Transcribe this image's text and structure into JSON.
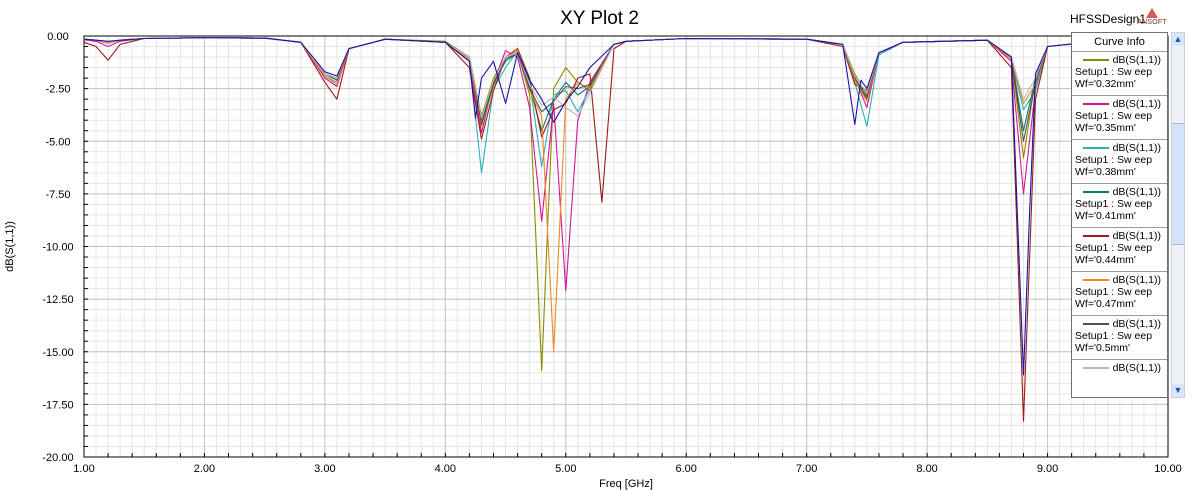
{
  "plot": {
    "title": "XY Plot 2",
    "design_name": "HFSSDesign1",
    "logo_text": "ANSOFT"
  },
  "legend": {
    "header": "Curve Info",
    "scroll_up_icon": "chevron-up-icon",
    "scroll_down_icon": "chevron-down-icon",
    "entries": [
      {
        "line1": "dB(S(1,1))",
        "line2": "Setup1 : Sw eep",
        "line3": "Wf='0.32mm'",
        "color": "#8b8b00"
      },
      {
        "line1": "dB(S(1,1))",
        "line2": "Setup1 : Sw eep",
        "line3": "Wf='0.35mm'",
        "color": "#d4149a"
      },
      {
        "line1": "dB(S(1,1))",
        "line2": "Setup1 : Sw eep",
        "line3": "Wf='0.38mm'",
        "color": "#2ab0b8"
      },
      {
        "line1": "dB(S(1,1))",
        "line2": "Setup1 : Sw eep",
        "line3": "Wf='0.41mm'",
        "color": "#0a7a6a"
      },
      {
        "line1": "dB(S(1,1))",
        "line2": "Setup1 : Sw eep",
        "line3": "Wf='0.44mm'",
        "color": "#a01818"
      },
      {
        "line1": "dB(S(1,1))",
        "line2": "Setup1 : Sw eep",
        "line3": "Wf='0.47mm'",
        "color": "#f0861a"
      },
      {
        "line1": "dB(S(1,1))",
        "line2": "Setup1 : Sw eep",
        "line3": "Wf='0.5mm'",
        "color": "#505050"
      },
      {
        "line1": "dB(S(1,1))",
        "line2": "",
        "line3": "",
        "color": "#b8b8b8"
      }
    ]
  },
  "chart_data": {
    "type": "line",
    "title": "XY Plot 2",
    "xlabel": "Freq [GHz]",
    "ylabel": "dB(S(1,1))",
    "xlim": [
      1.0,
      10.0
    ],
    "ylim": [
      -20.0,
      0.0
    ],
    "xticks": [
      "1.00",
      "2.00",
      "3.00",
      "4.00",
      "5.00",
      "6.00",
      "7.00",
      "8.00",
      "9.00",
      "10.00"
    ],
    "yticks": [
      "0.00",
      "-2.50",
      "-5.00",
      "-7.50",
      "-10.00",
      "-12.50",
      "-15.00",
      "-17.50",
      "-20.00"
    ],
    "grid": true,
    "legend_position": "right",
    "series": [
      {
        "name": "Wf='0.32mm'",
        "color": "#8b8b00",
        "x": [
          1.0,
          1.1,
          1.2,
          1.3,
          1.5,
          2.0,
          2.5,
          2.8,
          3.0,
          3.1,
          3.2,
          3.5,
          4.0,
          4.2,
          4.3,
          4.4,
          4.5,
          4.6,
          4.7,
          4.8,
          4.85,
          4.9,
          5.0,
          5.1,
          5.2,
          5.4,
          5.5,
          6.0,
          7.0,
          7.3,
          7.4,
          7.5,
          7.6,
          7.8,
          8.5,
          8.7,
          8.8,
          8.9,
          9.0,
          9.5,
          10.0
        ],
        "y": [
          -0.15,
          -0.2,
          -0.3,
          -0.2,
          -0.12,
          -0.08,
          -0.1,
          -0.3,
          -1.8,
          -2.1,
          -0.6,
          -0.15,
          -0.25,
          -1.0,
          -3.8,
          -2.0,
          -1.0,
          -0.8,
          -2.8,
          -15.9,
          -9.0,
          -2.5,
          -1.5,
          -2.2,
          -2.6,
          -0.4,
          -0.25,
          -0.12,
          -0.15,
          -0.4,
          -1.8,
          -2.8,
          -0.8,
          -0.3,
          -0.2,
          -1.0,
          -5.8,
          -2.0,
          -0.5,
          -0.2,
          -0.15
        ]
      },
      {
        "name": "Wf='0.35mm'",
        "color": "#d4149a",
        "x": [
          1.0,
          1.1,
          1.2,
          1.3,
          1.5,
          2.0,
          2.5,
          2.8,
          3.0,
          3.1,
          3.2,
          3.5,
          4.0,
          4.2,
          4.3,
          4.4,
          4.5,
          4.6,
          4.7,
          4.8,
          4.9,
          5.0,
          5.1,
          5.2,
          5.4,
          5.5,
          6.0,
          7.0,
          7.3,
          7.4,
          7.5,
          7.6,
          7.8,
          8.5,
          8.7,
          8.8,
          8.9,
          9.0,
          9.5,
          10.0
        ],
        "y": [
          -0.18,
          -0.25,
          -0.5,
          -0.25,
          -0.12,
          -0.08,
          -0.1,
          -0.3,
          -2.0,
          -2.4,
          -0.6,
          -0.15,
          -0.3,
          -1.2,
          -4.6,
          -2.2,
          -0.7,
          -1.0,
          -3.4,
          -8.8,
          -3.2,
          -12.1,
          -4.0,
          -2.2,
          -0.4,
          -0.25,
          -0.12,
          -0.15,
          -0.4,
          -2.0,
          -3.4,
          -0.8,
          -0.3,
          -0.2,
          -1.2,
          -7.5,
          -2.5,
          -0.5,
          -0.2,
          -0.15
        ]
      },
      {
        "name": "Wf='0.38mm'",
        "color": "#2ab0b8",
        "x": [
          1.0,
          1.1,
          1.2,
          1.3,
          1.5,
          2.0,
          2.5,
          2.8,
          3.0,
          3.1,
          3.2,
          3.5,
          4.0,
          4.2,
          4.3,
          4.4,
          4.5,
          4.6,
          4.7,
          4.8,
          4.9,
          5.0,
          5.1,
          5.2,
          5.4,
          5.5,
          6.0,
          7.0,
          7.3,
          7.4,
          7.5,
          7.6,
          7.8,
          8.5,
          8.7,
          8.8,
          8.9,
          9.0,
          9.5,
          10.0
        ],
        "y": [
          -0.15,
          -0.2,
          -0.35,
          -0.2,
          -0.12,
          -0.08,
          -0.1,
          -0.3,
          -1.9,
          -2.2,
          -0.6,
          -0.15,
          -0.3,
          -1.1,
          -6.5,
          -2.5,
          -1.5,
          -0.7,
          -2.2,
          -6.2,
          -2.8,
          -2.6,
          -3.6,
          -2.5,
          -0.4,
          -0.25,
          -0.12,
          -0.15,
          -0.4,
          -2.2,
          -4.3,
          -0.9,
          -0.3,
          -0.2,
          -1.1,
          -3.5,
          -2.6,
          -0.5,
          -0.2,
          -0.15
        ]
      },
      {
        "name": "Wf='0.41mm'",
        "color": "#0a7a6a",
        "x": [
          1.0,
          1.1,
          1.2,
          1.3,
          1.5,
          2.0,
          2.5,
          2.8,
          3.0,
          3.1,
          3.2,
          3.5,
          4.0,
          4.2,
          4.3,
          4.4,
          4.5,
          4.6,
          4.7,
          4.8,
          4.9,
          5.0,
          5.1,
          5.2,
          5.4,
          5.5,
          6.0,
          7.0,
          7.3,
          7.4,
          7.5,
          7.6,
          7.8,
          8.5,
          8.7,
          8.8,
          8.9,
          9.0,
          9.5,
          10.0
        ],
        "y": [
          -0.15,
          -0.2,
          -0.3,
          -0.2,
          -0.12,
          -0.08,
          -0.1,
          -0.3,
          -1.8,
          -2.0,
          -0.6,
          -0.15,
          -0.3,
          -1.0,
          -4.0,
          -2.2,
          -1.2,
          -0.8,
          -2.4,
          -4.5,
          -3.0,
          -2.2,
          -2.8,
          -2.4,
          -0.4,
          -0.25,
          -0.12,
          -0.15,
          -0.4,
          -2.0,
          -3.0,
          -0.8,
          -0.3,
          -0.2,
          -1.0,
          -4.5,
          -2.0,
          -0.5,
          -0.2,
          -0.15
        ]
      },
      {
        "name": "Wf='0.44mm'",
        "color": "#a01818",
        "x": [
          1.0,
          1.1,
          1.2,
          1.3,
          1.5,
          2.0,
          2.5,
          2.8,
          3.0,
          3.1,
          3.2,
          3.5,
          4.0,
          4.2,
          4.3,
          4.4,
          4.5,
          4.6,
          4.7,
          4.8,
          4.9,
          5.0,
          5.1,
          5.2,
          5.3,
          5.4,
          5.5,
          6.0,
          7.0,
          7.3,
          7.4,
          7.5,
          7.6,
          7.8,
          8.5,
          8.7,
          8.8,
          8.9,
          9.0,
          9.5,
          10.0
        ],
        "y": [
          -0.3,
          -0.5,
          -1.15,
          -0.4,
          -0.12,
          -0.08,
          -0.1,
          -0.3,
          -2.2,
          -3.0,
          -0.6,
          -0.15,
          -0.3,
          -1.5,
          -4.9,
          -2.6,
          -1.0,
          -0.6,
          -2.0,
          -4.8,
          -3.5,
          -3.2,
          -2.0,
          -1.8,
          -7.9,
          -0.6,
          -0.25,
          -0.12,
          -0.15,
          -0.5,
          -2.3,
          -2.6,
          -0.8,
          -0.3,
          -0.2,
          -1.5,
          -18.3,
          -3.0,
          -0.5,
          -0.2,
          -0.15
        ]
      },
      {
        "name": "Wf='0.47mm'",
        "color": "#f0861a",
        "x": [
          1.0,
          1.1,
          1.2,
          1.3,
          1.5,
          2.0,
          2.5,
          2.8,
          3.0,
          3.1,
          3.2,
          3.5,
          4.0,
          4.2,
          4.3,
          4.4,
          4.5,
          4.6,
          4.7,
          4.8,
          4.9,
          5.0,
          5.1,
          5.2,
          5.4,
          5.5,
          6.0,
          7.0,
          7.3,
          7.4,
          7.5,
          7.6,
          7.8,
          8.5,
          8.7,
          8.8,
          8.9,
          9.0,
          9.5,
          10.0
        ],
        "y": [
          -0.15,
          -0.2,
          -0.35,
          -0.2,
          -0.12,
          -0.08,
          -0.1,
          -0.3,
          -1.9,
          -2.3,
          -0.6,
          -0.15,
          -0.3,
          -1.1,
          -4.3,
          -2.4,
          -1.0,
          -0.7,
          -2.6,
          -3.8,
          -15.0,
          -3.0,
          -2.2,
          -2.5,
          -0.4,
          -0.25,
          -0.12,
          -0.15,
          -0.4,
          -2.1,
          -3.1,
          -0.8,
          -0.3,
          -0.2,
          -1.1,
          -3.2,
          -2.3,
          -0.5,
          -0.2,
          -0.15
        ]
      },
      {
        "name": "Wf='0.5mm'",
        "color": "#505050",
        "x": [
          1.0,
          1.1,
          1.2,
          1.3,
          1.5,
          2.0,
          2.5,
          2.8,
          3.0,
          3.1,
          3.2,
          3.5,
          4.0,
          4.2,
          4.3,
          4.4,
          4.5,
          4.6,
          4.7,
          4.8,
          4.9,
          5.0,
          5.1,
          5.2,
          5.4,
          5.5,
          6.0,
          7.0,
          7.3,
          7.4,
          7.5,
          7.6,
          7.8,
          8.5,
          8.7,
          8.8,
          8.9,
          9.0,
          9.5,
          10.0
        ],
        "y": [
          -0.15,
          -0.2,
          -0.3,
          -0.2,
          -0.12,
          -0.08,
          -0.1,
          -0.3,
          -1.8,
          -2.1,
          -0.6,
          -0.15,
          -0.3,
          -1.0,
          -4.2,
          -2.3,
          -1.1,
          -0.8,
          -2.5,
          -3.6,
          -3.1,
          -2.4,
          -2.5,
          -2.3,
          -0.4,
          -0.25,
          -0.12,
          -0.15,
          -0.4,
          -2.0,
          -2.9,
          -0.8,
          -0.3,
          -0.2,
          -1.0,
          -5.0,
          -2.2,
          -0.5,
          -0.2,
          -0.15
        ]
      },
      {
        "name": "dB(S(1,1))",
        "color": "#b8b8b8",
        "x": [
          1.0,
          1.1,
          1.2,
          1.3,
          1.5,
          2.0,
          2.5,
          2.8,
          3.0,
          3.1,
          3.2,
          3.5,
          4.0,
          4.2,
          4.3,
          4.4,
          4.5,
          4.6,
          4.7,
          4.8,
          4.9,
          5.0,
          5.1,
          5.2,
          5.4,
          5.5,
          6.0,
          7.0,
          7.3,
          7.4,
          7.5,
          7.6,
          7.8,
          8.5,
          8.7,
          8.8,
          8.9,
          9.0,
          9.5,
          10.0
        ],
        "y": [
          -0.15,
          -0.2,
          -0.3,
          -0.2,
          -0.12,
          -0.08,
          -0.1,
          -0.3,
          -1.8,
          -2.0,
          -0.6,
          -0.15,
          -0.3,
          -1.0,
          -3.9,
          -2.1,
          -1.0,
          -0.8,
          -2.3,
          -3.3,
          -2.9,
          -3.4,
          -3.8,
          -2.7,
          -0.4,
          -0.25,
          -0.12,
          -0.15,
          -0.4,
          -1.9,
          -2.7,
          -0.8,
          -0.3,
          -0.2,
          -1.0,
          -3.0,
          -2.0,
          -0.5,
          -0.2,
          -0.15
        ]
      },
      {
        "name": "dB(S(1,1))",
        "color": "#1414a8",
        "x": [
          1.0,
          1.1,
          1.2,
          1.3,
          1.5,
          2.0,
          2.5,
          2.8,
          3.0,
          3.1,
          3.2,
          3.5,
          4.0,
          4.2,
          4.25,
          4.3,
          4.4,
          4.5,
          4.55,
          4.6,
          4.7,
          4.8,
          4.9,
          5.0,
          5.1,
          5.2,
          5.4,
          5.5,
          6.0,
          7.0,
          7.3,
          7.4,
          7.45,
          7.5,
          7.6,
          7.8,
          8.5,
          8.7,
          8.8,
          8.85,
          8.9,
          9.0,
          9.5,
          10.0
        ],
        "y": [
          -0.15,
          -0.2,
          -0.25,
          -0.2,
          -0.12,
          -0.08,
          -0.1,
          -0.3,
          -1.7,
          -1.9,
          -0.6,
          -0.15,
          -0.3,
          -1.2,
          -3.9,
          -2.0,
          -1.2,
          -3.2,
          -2.0,
          -0.8,
          -2.1,
          -3.0,
          -4.1,
          -3.1,
          -2.4,
          -1.5,
          -0.4,
          -0.25,
          -0.12,
          -0.15,
          -0.4,
          -4.2,
          -2.1,
          -2.5,
          -0.8,
          -0.3,
          -0.2,
          -1.0,
          -16.1,
          -8.5,
          -1.8,
          -0.5,
          -0.2,
          -0.15
        ]
      }
    ]
  }
}
